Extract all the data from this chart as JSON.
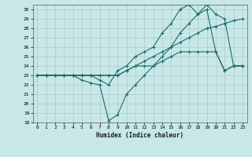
{
  "xlabel": "Humidex (Indice chaleur)",
  "ylabel": "",
  "bg_color": "#c8e8e8",
  "grid_color": "#b0c8c8",
  "line_color": "#1a6b6b",
  "xlim": [
    -0.5,
    23.5
  ],
  "ylim": [
    18,
    30.5
  ],
  "yticks": [
    18,
    19,
    20,
    21,
    22,
    23,
    24,
    25,
    26,
    27,
    28,
    29,
    30
  ],
  "xticks": [
    0,
    1,
    2,
    3,
    4,
    5,
    6,
    7,
    8,
    9,
    10,
    11,
    12,
    13,
    14,
    15,
    16,
    17,
    18,
    19,
    20,
    21,
    22,
    23
  ],
  "series1": [
    [
      0,
      23
    ],
    [
      1,
      23
    ],
    [
      2,
      23
    ],
    [
      3,
      23
    ],
    [
      4,
      23
    ],
    [
      5,
      23
    ],
    [
      6,
      23
    ],
    [
      7,
      23
    ],
    [
      8,
      23
    ],
    [
      9,
      23
    ],
    [
      10,
      23.5
    ],
    [
      11,
      24
    ],
    [
      12,
      24.5
    ],
    [
      13,
      25
    ],
    [
      14,
      25.5
    ],
    [
      15,
      26
    ],
    [
      16,
      26.5
    ],
    [
      17,
      27
    ],
    [
      18,
      27.5
    ],
    [
      19,
      28
    ],
    [
      20,
      28.2
    ],
    [
      21,
      28.5
    ],
    [
      22,
      28.8
    ],
    [
      23,
      29
    ]
  ],
  "series2": [
    [
      0,
      23
    ],
    [
      1,
      23
    ],
    [
      2,
      23
    ],
    [
      3,
      23
    ],
    [
      4,
      23
    ],
    [
      5,
      22.5
    ],
    [
      6,
      22.2
    ],
    [
      7,
      22
    ],
    [
      8,
      18.2
    ],
    [
      9,
      18.8
    ],
    [
      10,
      21
    ],
    [
      11,
      22
    ],
    [
      12,
      23
    ],
    [
      13,
      24
    ],
    [
      14,
      25
    ],
    [
      15,
      26
    ],
    [
      16,
      27.5
    ],
    [
      17,
      28.5
    ],
    [
      18,
      29.5
    ],
    [
      19,
      30.5
    ],
    [
      20,
      29.5
    ],
    [
      21,
      29
    ],
    [
      22,
      24
    ],
    [
      23,
      24
    ]
  ],
  "series3": [
    [
      0,
      23
    ],
    [
      1,
      23
    ],
    [
      2,
      23
    ],
    [
      3,
      23
    ],
    [
      4,
      23
    ],
    [
      5,
      23
    ],
    [
      6,
      23
    ],
    [
      7,
      22.5
    ],
    [
      8,
      22
    ],
    [
      9,
      23.5
    ],
    [
      10,
      24
    ],
    [
      11,
      25
    ],
    [
      12,
      25.5
    ],
    [
      13,
      26
    ],
    [
      14,
      27.5
    ],
    [
      15,
      28.5
    ],
    [
      16,
      30
    ],
    [
      17,
      30.5
    ],
    [
      18,
      29.5
    ],
    [
      19,
      30
    ],
    [
      20,
      25.5
    ],
    [
      21,
      23.5
    ],
    [
      22,
      24
    ],
    [
      23,
      24
    ]
  ],
  "series4": [
    [
      0,
      23
    ],
    [
      1,
      23
    ],
    [
      2,
      23
    ],
    [
      3,
      23
    ],
    [
      4,
      23
    ],
    [
      5,
      23
    ],
    [
      6,
      23
    ],
    [
      7,
      23
    ],
    [
      8,
      23
    ],
    [
      9,
      23
    ],
    [
      10,
      23.5
    ],
    [
      11,
      24
    ],
    [
      12,
      24
    ],
    [
      13,
      24
    ],
    [
      14,
      24.5
    ],
    [
      15,
      25
    ],
    [
      16,
      25.5
    ],
    [
      17,
      25.5
    ],
    [
      18,
      25.5
    ],
    [
      19,
      25.5
    ],
    [
      20,
      25.5
    ],
    [
      21,
      23.5
    ],
    [
      22,
      24
    ],
    [
      23,
      24
    ]
  ]
}
